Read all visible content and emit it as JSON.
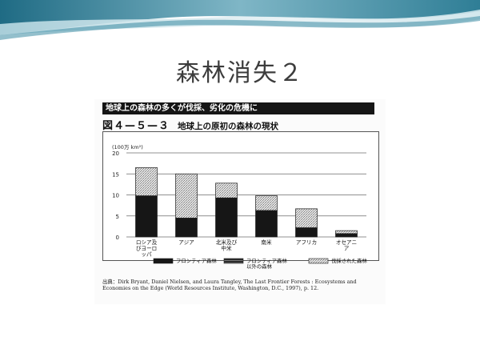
{
  "slide": {
    "title": "森林消失２"
  },
  "figure": {
    "caption_bar": "地球上の森林の多くが伐採、劣化の危機に",
    "number": "図４—５—３",
    "subtitle": "地球上の原初の森林の現状",
    "source": "出典：Dirk Bryant, Daniel Nielsen, and Laura Tangley, The Last Frontier Forests : Ecosystems and Economies on the Edge (World Resources Institute, Washington, D.C., 1997), p. 12."
  },
  "chart_data": {
    "type": "bar",
    "stacked": true,
    "ylabel": "(100万 km²)",
    "ylim": [
      0,
      20
    ],
    "yticks": [
      0,
      5,
      10,
      15,
      20
    ],
    "grid": true,
    "legend_position": "bottom",
    "categories": [
      "ロシア及びヨーロッパ",
      "アジア",
      "北米及び中米",
      "南米",
      "アフリカ",
      "オセアニア"
    ],
    "series": [
      {
        "name": "フロンティア森林",
        "pattern": "solid-dark",
        "values": [
          9.8,
          4.5,
          9.3,
          6.3,
          2.2,
          0.8
        ]
      },
      {
        "name": "フロンティア森林以外の森林",
        "pattern": "dark-hatched",
        "values": [
          0,
          0,
          0,
          0,
          0,
          0
        ]
      },
      {
        "name": "伐採された森林",
        "pattern": "light-stipple",
        "values": [
          6.7,
          10.5,
          3.5,
          3.5,
          4.5,
          0.7
        ]
      }
    ],
    "colors": {
      "solid": "#161616",
      "stipple": "#c9c9c9"
    }
  }
}
